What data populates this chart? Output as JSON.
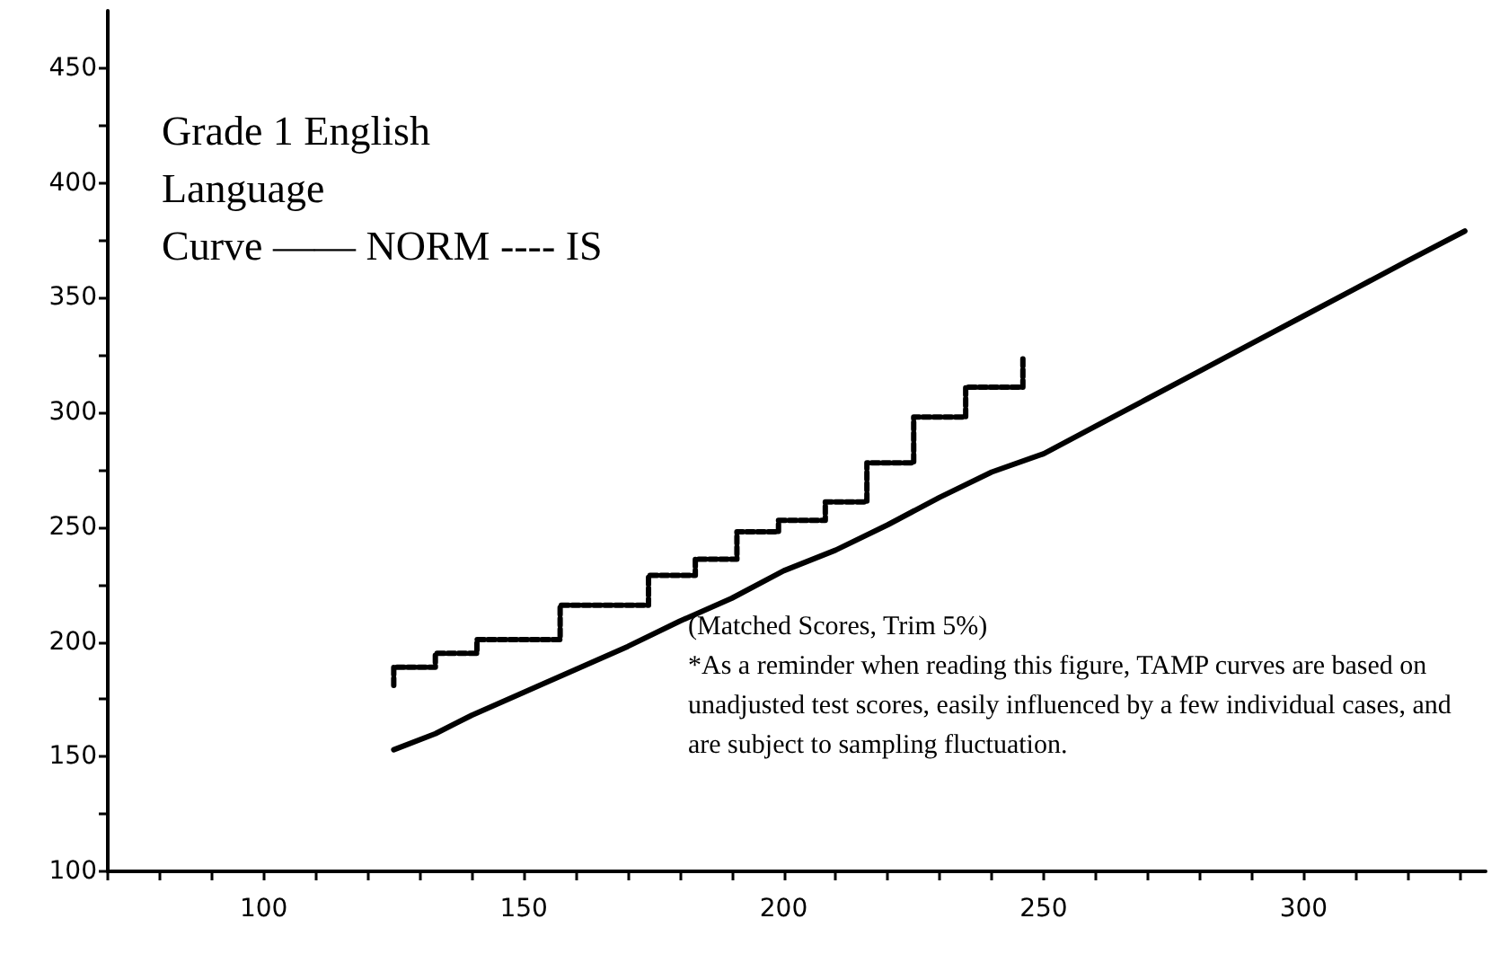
{
  "chart_data": {
    "type": "line",
    "title": "Grade 1 English\nLanguage\nCurve —— NORM ---- IS",
    "annotations": [
      "(Matched Scores, Trim 5%)",
      "*As a reminder when reading this figure, TAMP curves are based on unadjusted test scores, easily influenced by a few individual cases, and are subject to sampling fluctuation."
    ],
    "series": [
      {
        "color": "#000000",
        "line_style": "solid",
        "x": [
          125,
          133,
          140,
          150,
          160,
          170,
          180,
          190,
          200,
          210,
          220,
          230,
          240,
          250,
          260,
          270,
          280,
          290,
          300,
          310,
          320,
          331
        ],
        "values": [
          153,
          160,
          168,
          178,
          188,
          198,
          209,
          219,
          231,
          240,
          251,
          263,
          274,
          282,
          294,
          306,
          318,
          330,
          342,
          354,
          366,
          379
        ]
      },
      {
        "type": "step",
        "color": "#000000",
        "line_style": "dashed",
        "x": [
          125,
          125,
          133,
          141,
          157,
          174,
          183,
          191,
          199,
          208,
          216,
          225,
          235,
          246
        ],
        "values": [
          181,
          189,
          195,
          201,
          216,
          229,
          236,
          248,
          253,
          261,
          278,
          298,
          311,
          324
        ]
      }
    ],
    "xlim": [
      70,
      335
    ],
    "xticks": [
      {
        "value": 70,
        "label": null
      },
      {
        "value": 80,
        "label": null
      },
      {
        "value": 90,
        "label": null
      },
      100,
      {
        "value": 110,
        "label": null
      },
      {
        "value": 120,
        "label": null
      },
      {
        "value": 130,
        "label": null
      },
      {
        "value": 140,
        "label": null
      },
      150,
      {
        "value": 160,
        "label": null
      },
      {
        "value": 170,
        "label": null
      },
      {
        "value": 180,
        "label": null
      },
      {
        "value": 190,
        "label": null
      },
      200,
      {
        "value": 210,
        "label": null
      },
      {
        "value": 220,
        "label": null
      },
      {
        "value": 230,
        "label": null
      },
      {
        "value": 240,
        "label": null
      },
      250,
      {
        "value": 260,
        "label": null
      },
      {
        "value": 270,
        "label": null
      },
      {
        "value": 280,
        "label": null
      },
      {
        "value": 290,
        "label": null
      },
      300,
      {
        "value": 310,
        "label": null
      },
      {
        "value": 320,
        "label": null
      },
      {
        "value": 330,
        "label": null
      }
    ],
    "ylim": [
      100,
      475
    ],
    "yticks": [
      100,
      {
        "value": 125,
        "label": null
      },
      150,
      {
        "value": 175,
        "label": null
      },
      200,
      {
        "value": 225,
        "label": null
      },
      250,
      {
        "value": 275,
        "label": null
      },
      300,
      {
        "value": 325,
        "label": null
      },
      350,
      {
        "value": 375,
        "label": null
      },
      400,
      {
        "value": 425,
        "label": null
      },
      450
    ],
    "grid": false,
    "marker": "none"
  }
}
